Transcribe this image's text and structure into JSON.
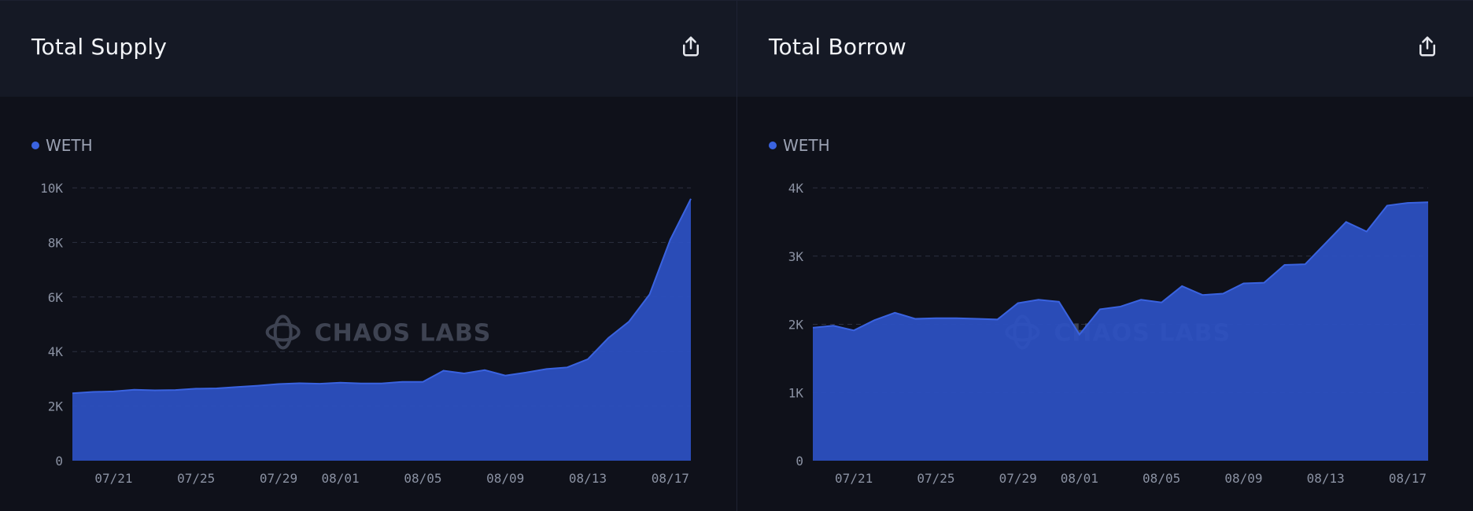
{
  "colors": {
    "series": "#2d51c4",
    "seriesLine": "#3a63e0",
    "grid": "#2c3040",
    "background": "#0f111a",
    "header": "#151925"
  },
  "watermark": "CHAOS LABS",
  "panels": [
    {
      "title": "Total Supply",
      "share_icon": "share-upload-icon",
      "legend": "WETH"
    },
    {
      "title": "Total Borrow",
      "share_icon": "share-upload-icon",
      "legend": "WETH"
    }
  ],
  "chart_data": [
    {
      "type": "area",
      "title": "Total Supply",
      "grid": true,
      "legend_placement": "top-left",
      "series": [
        {
          "name": "WETH",
          "x": [
            "07/19",
            "07/20",
            "07/21",
            "07/22",
            "07/23",
            "07/24",
            "07/25",
            "07/26",
            "07/27",
            "07/28",
            "07/29",
            "07/30",
            "07/31",
            "08/01",
            "08/02",
            "08/03",
            "08/04",
            "08/05",
            "08/06",
            "08/07",
            "08/08",
            "08/09",
            "08/10",
            "08/11",
            "08/12",
            "08/13",
            "08/14",
            "08/15",
            "08/16",
            "08/17",
            "08/18"
          ],
          "values": [
            2470,
            2520,
            2540,
            2600,
            2580,
            2590,
            2640,
            2650,
            2700,
            2750,
            2810,
            2840,
            2820,
            2860,
            2830,
            2830,
            2890,
            2890,
            3300,
            3200,
            3320,
            3120,
            3230,
            3360,
            3420,
            3720,
            4500,
            5100,
            6100,
            8100,
            9600
          ]
        }
      ],
      "x_ticks": [
        "07/21",
        "07/25",
        "07/29",
        "08/01",
        "08/05",
        "08/09",
        "08/13",
        "08/17"
      ],
      "y_ticks": [
        0,
        2000,
        4000,
        6000,
        8000,
        10000
      ],
      "y_tick_labels": [
        "0",
        "2K",
        "4K",
        "6K",
        "8K",
        "10K"
      ],
      "ylim": [
        0,
        10000
      ]
    },
    {
      "type": "area",
      "title": "Total Borrow",
      "grid": true,
      "legend_placement": "top-left",
      "series": [
        {
          "name": "WETH",
          "x": [
            "07/19",
            "07/20",
            "07/21",
            "07/22",
            "07/23",
            "07/24",
            "07/25",
            "07/26",
            "07/27",
            "07/28",
            "07/29",
            "07/30",
            "07/31",
            "08/01",
            "08/02",
            "08/03",
            "08/04",
            "08/05",
            "08/06",
            "08/07",
            "08/08",
            "08/09",
            "08/10",
            "08/11",
            "08/12",
            "08/13",
            "08/14",
            "08/15",
            "08/16",
            "08/17",
            "08/18"
          ],
          "values": [
            1950,
            1980,
            1910,
            2060,
            2170,
            2080,
            2090,
            2090,
            2080,
            2070,
            2310,
            2360,
            2330,
            1850,
            2220,
            2260,
            2360,
            2320,
            2560,
            2430,
            2450,
            2600,
            2610,
            2870,
            2880,
            3190,
            3500,
            3360,
            3740,
            3780,
            3790
          ]
        }
      ],
      "x_ticks": [
        "07/21",
        "07/25",
        "07/29",
        "08/01",
        "08/05",
        "08/09",
        "08/13",
        "08/17"
      ],
      "y_ticks": [
        0,
        1000,
        2000,
        3000,
        4000
      ],
      "y_tick_labels": [
        "0",
        "1K",
        "2K",
        "3K",
        "4K"
      ],
      "ylim": [
        0,
        4000
      ]
    }
  ]
}
